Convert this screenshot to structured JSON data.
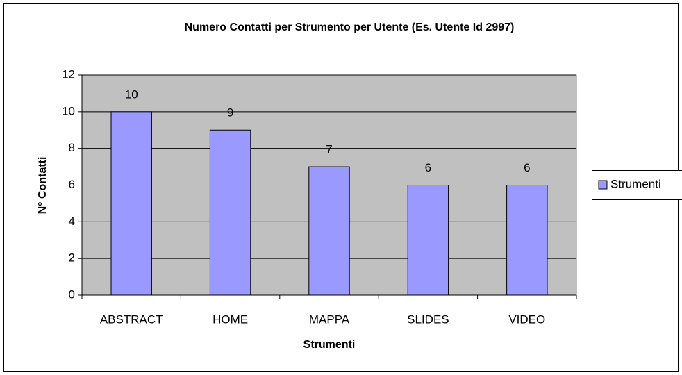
{
  "chart_data": {
    "type": "bar",
    "title": "Numero Contatti per Strumento per Utente (Es. Utente Id 2997)",
    "x_label": "Strumenti",
    "y_label": "N° Contatti",
    "categories": [
      "ABSTRACT",
      "HOME",
      "MAPPA",
      "SLIDES",
      "VIDEO"
    ],
    "series": [
      {
        "name": "Strumenti",
        "color": "#9999ff",
        "values": [
          10,
          9,
          7,
          6,
          6
        ]
      }
    ],
    "ylim": [
      0,
      12
    ],
    "yticks": [
      0,
      2,
      4,
      6,
      8,
      10,
      12
    ],
    "grid": true,
    "legend": "right"
  }
}
